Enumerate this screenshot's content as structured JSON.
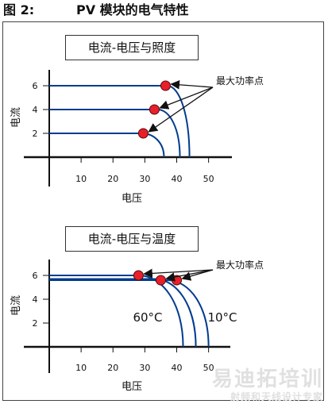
{
  "figure": {
    "number_label": "图 2:",
    "title": "PV 模块的电气特性"
  },
  "chart_data": [
    {
      "type": "line",
      "title": "电流-电压与照度",
      "xlabel": "电压",
      "ylabel": "电流",
      "xticks": [
        10,
        20,
        30,
        40,
        50
      ],
      "yticks": [
        2,
        4,
        6
      ],
      "xlim": [
        0,
        50
      ],
      "ylim": [
        0,
        6
      ],
      "series_color": "#003b8e",
      "mpp_color": "#e8202a",
      "series": [
        {
          "isc": 6,
          "voc": 44,
          "knee": 37,
          "mpp": [
            36.5,
            6
          ]
        },
        {
          "isc": 4,
          "voc": 41,
          "knee": 34,
          "mpp": [
            33,
            4
          ]
        },
        {
          "isc": 2,
          "voc": 36,
          "knee": 29,
          "mpp": [
            29.5,
            2
          ]
        }
      ],
      "annotation": "最大功率点"
    },
    {
      "type": "line",
      "title": "电流-电压与温度",
      "xlabel": "电压",
      "ylabel": "电流",
      "xticks": [
        10,
        20,
        30,
        40,
        50
      ],
      "yticks": [
        2,
        4,
        6
      ],
      "xlim": [
        0,
        50
      ],
      "ylim": [
        0,
        6
      ],
      "series_color": "#003b8e",
      "mpp_color": "#e8202a",
      "series": [
        {
          "name": "60°C",
          "isc": 6,
          "voc": 42,
          "knee": 28,
          "mpp": [
            28,
            6
          ]
        },
        {
          "isc": 5.7,
          "voc": 46,
          "knee": 33,
          "mpp": [
            35,
            5.6
          ]
        },
        {
          "name": "10°C",
          "isc": 5.6,
          "voc": 50,
          "knee": 37,
          "mpp": [
            40,
            5.6
          ]
        }
      ],
      "annotation": "最大功率点"
    }
  ],
  "watermark": {
    "line1": "易迪拓培训",
    "line2": "射频和天线设计专家"
  }
}
